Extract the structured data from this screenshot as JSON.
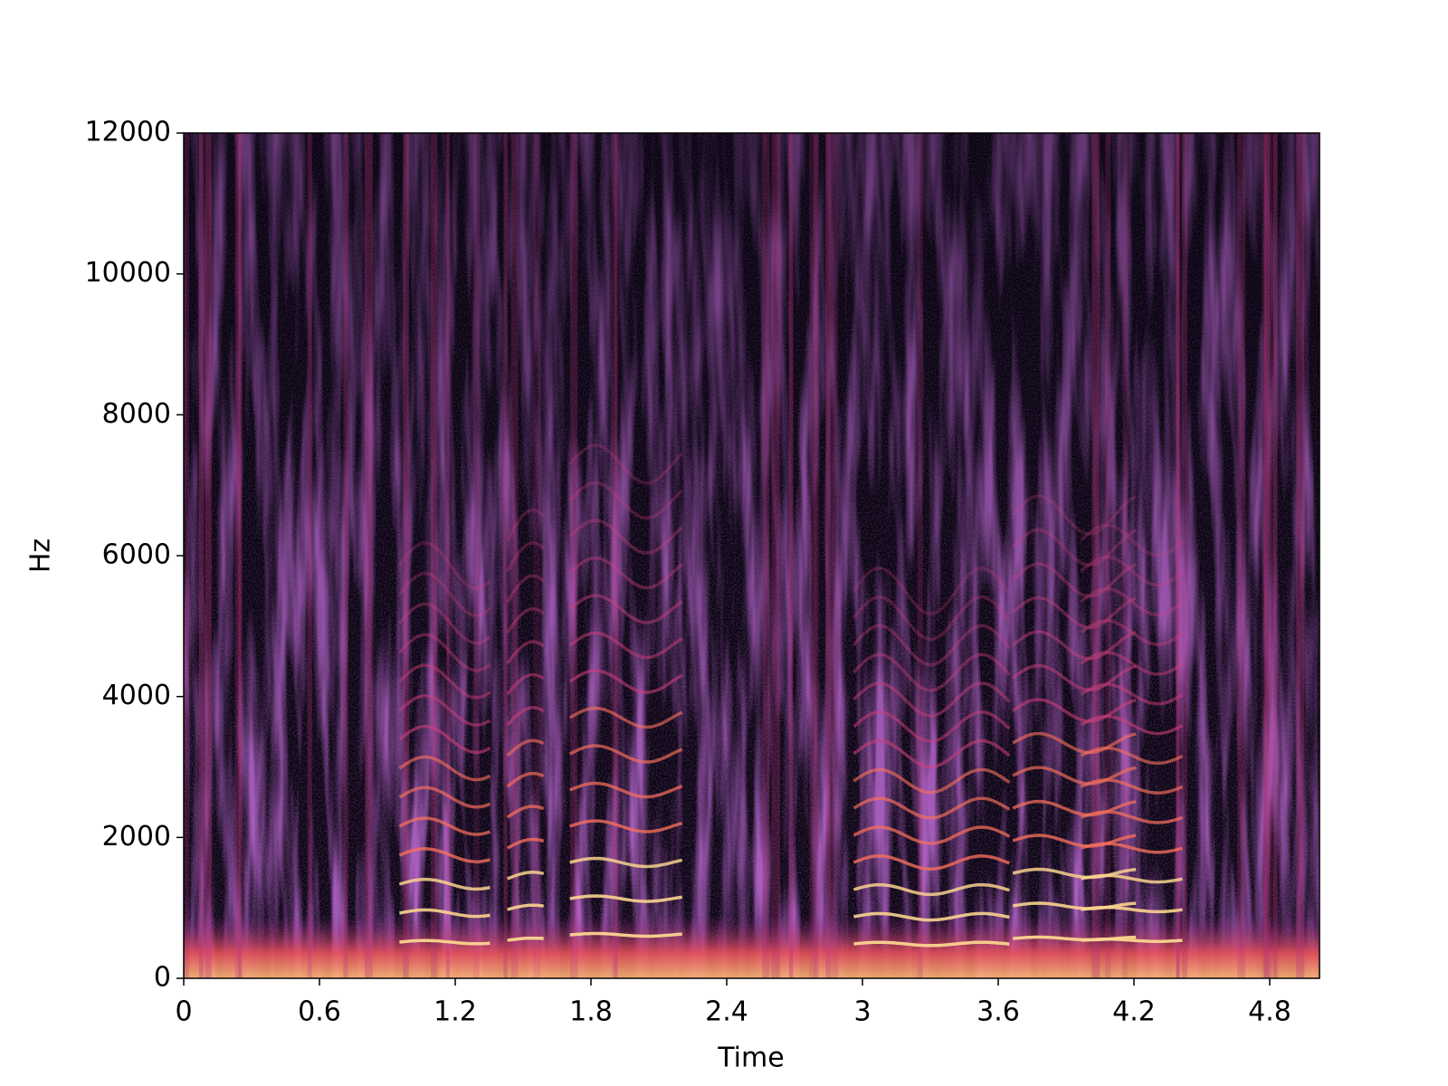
{
  "chart_data": {
    "type": "spectrogram",
    "x_label": "Time",
    "y_label": "Hz",
    "xlim": [
      0,
      5.02
    ],
    "xticks": [
      0,
      0.6,
      1.2,
      1.8,
      2.4,
      3,
      3.6,
      4.2,
      4.8
    ],
    "ylim": [
      0,
      12000
    ],
    "yticks": [
      0,
      2000,
      4000,
      6000,
      8000,
      10000,
      12000
    ],
    "colormap": "magma"
  }
}
